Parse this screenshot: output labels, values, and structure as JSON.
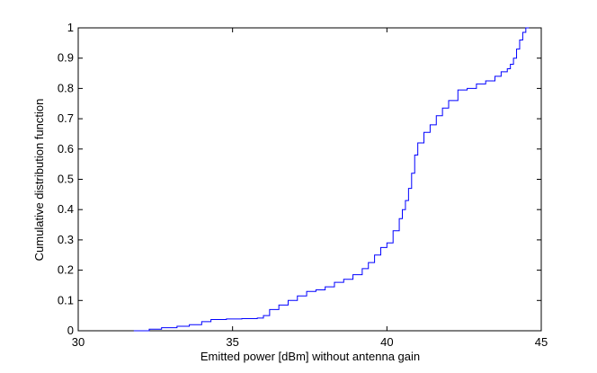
{
  "chart_data": {
    "type": "line",
    "title": "",
    "xlabel": "Emitted power [dBm] without antenna gain",
    "ylabel": "Cumulative distribution function",
    "xlim": [
      30,
      45
    ],
    "ylim": [
      0,
      1
    ],
    "xticks": [
      30,
      35,
      40,
      45
    ],
    "xtick_labels": [
      "30",
      "35",
      "40",
      "45"
    ],
    "yticks": [
      0,
      0.1,
      0.2,
      0.3,
      0.4,
      0.5,
      0.6,
      0.7,
      0.8,
      0.9,
      1
    ],
    "ytick_labels": [
      "0",
      "0.1",
      "0.2",
      "0.3",
      "0.4",
      "0.5",
      "0.6",
      "0.7",
      "0.8",
      "0.9",
      "1"
    ],
    "grid": false,
    "series": [
      {
        "color": "#0000ff",
        "x": [
          31.8,
          32.3,
          32.7,
          33.2,
          33.6,
          34.0,
          34.3,
          34.8,
          35.3,
          35.8,
          36.0,
          36.2,
          36.5,
          36.8,
          37.1,
          37.4,
          37.7,
          38.0,
          38.3,
          38.6,
          38.9,
          39.2,
          39.4,
          39.6,
          39.8,
          40.0,
          40.2,
          40.4,
          40.5,
          40.6,
          40.7,
          40.8,
          40.9,
          41.0,
          41.2,
          41.4,
          41.6,
          41.8,
          42.0,
          42.3,
          42.6,
          42.9,
          43.2,
          43.5,
          43.7,
          43.9,
          44.0,
          44.1,
          44.2,
          44.3,
          44.4,
          44.5,
          44.6
        ],
        "y": [
          0.0,
          0.005,
          0.01,
          0.015,
          0.02,
          0.03,
          0.037,
          0.039,
          0.04,
          0.042,
          0.05,
          0.07,
          0.085,
          0.1,
          0.115,
          0.13,
          0.135,
          0.145,
          0.16,
          0.17,
          0.185,
          0.205,
          0.225,
          0.25,
          0.275,
          0.29,
          0.33,
          0.37,
          0.4,
          0.43,
          0.47,
          0.52,
          0.58,
          0.62,
          0.655,
          0.68,
          0.71,
          0.735,
          0.76,
          0.795,
          0.8,
          0.815,
          0.825,
          0.84,
          0.855,
          0.865,
          0.88,
          0.9,
          0.93,
          0.96,
          0.985,
          1.0,
          1.0
        ]
      }
    ]
  }
}
